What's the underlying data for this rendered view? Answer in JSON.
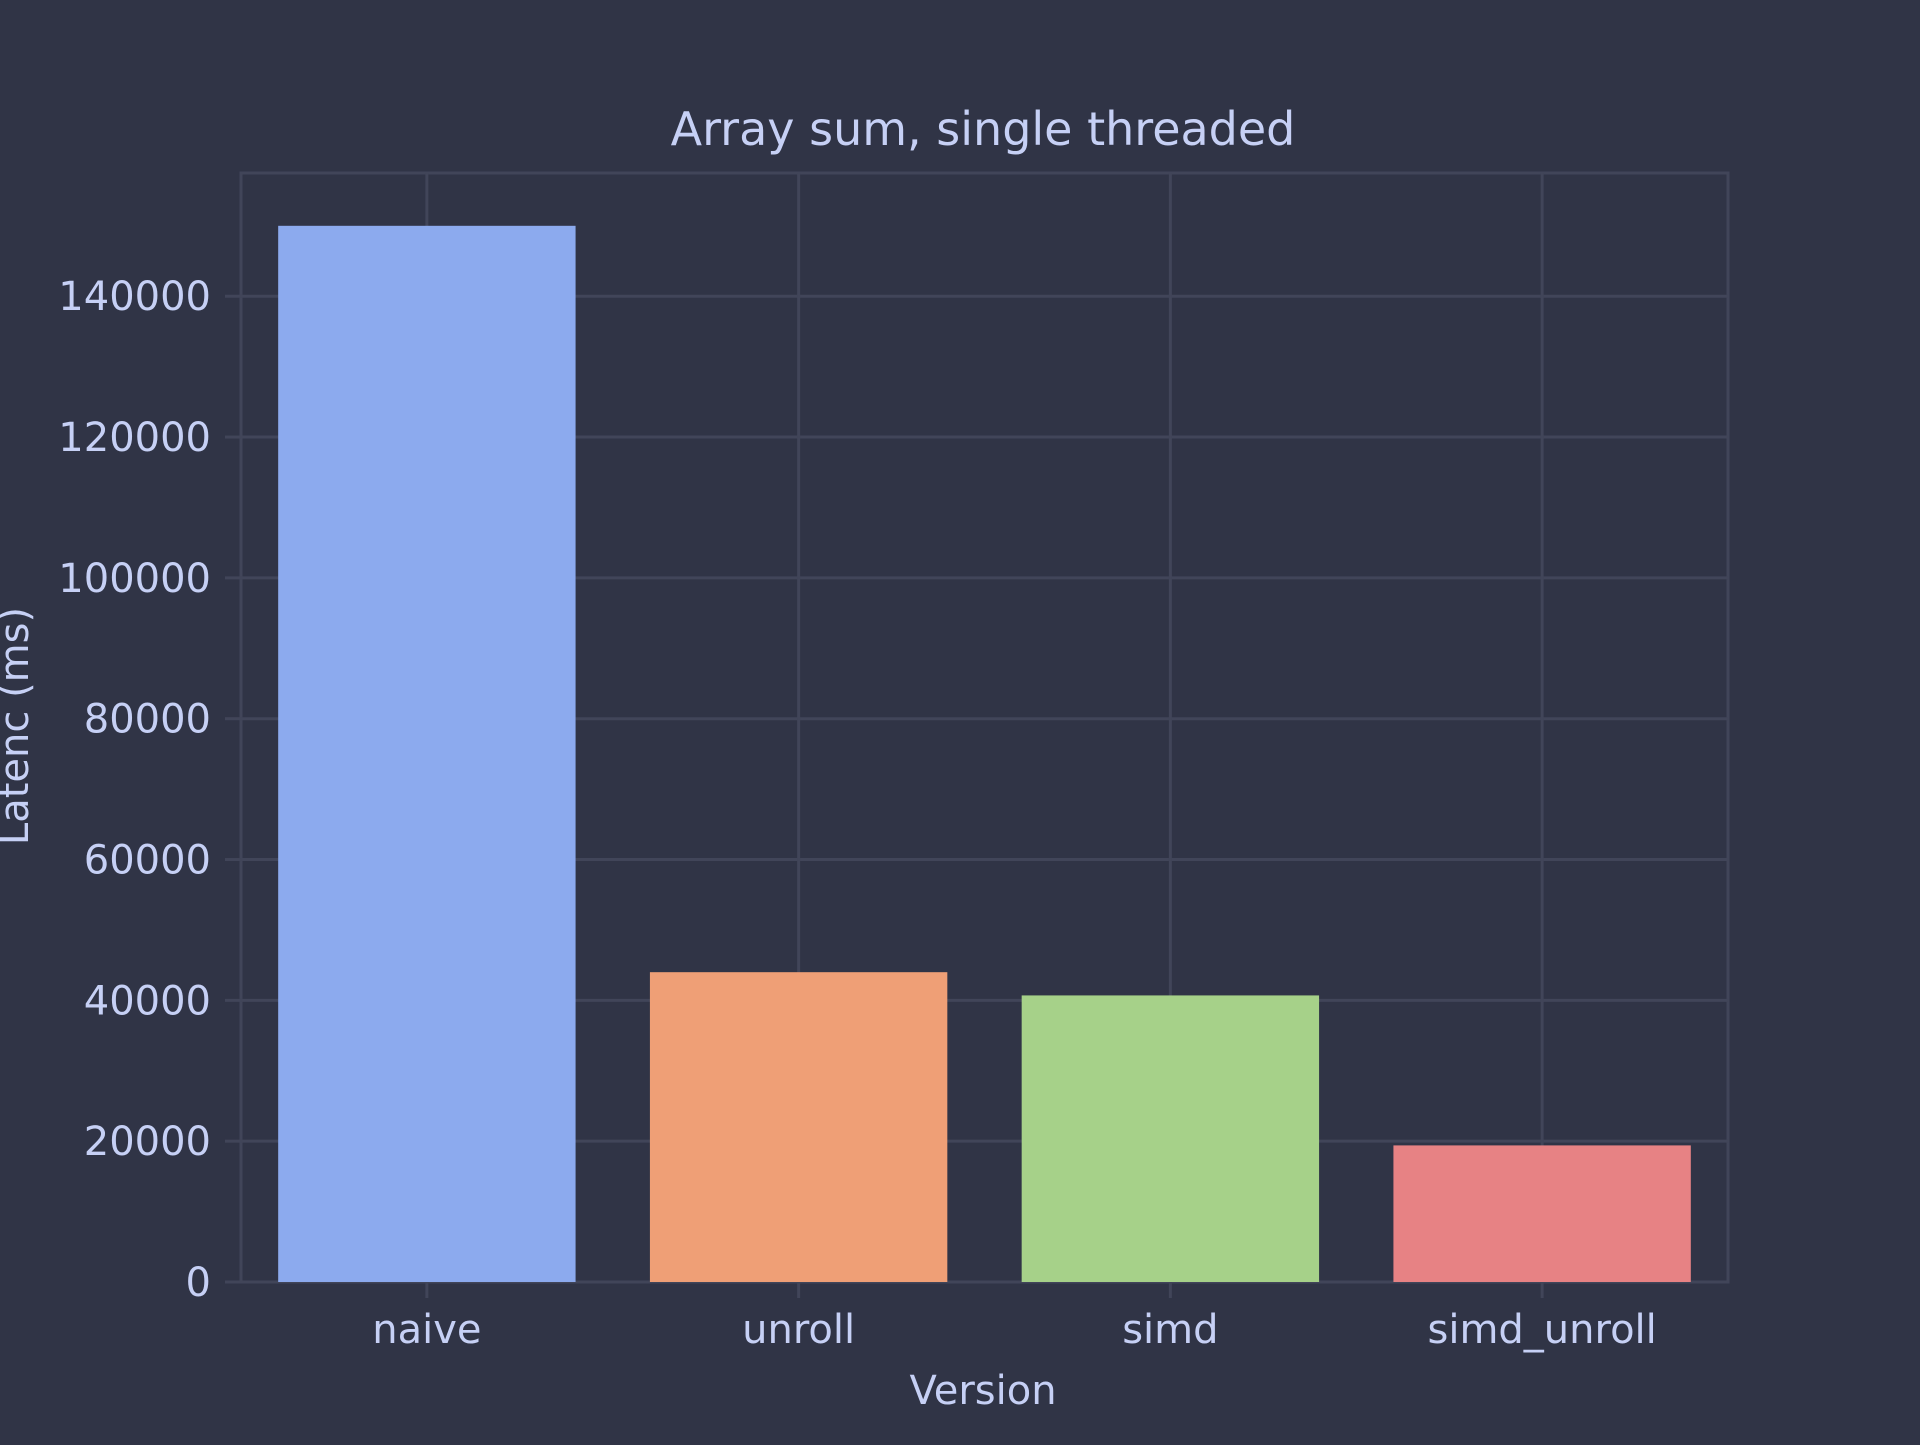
{
  "chart_data": {
    "type": "bar",
    "title": "Array sum, single threaded",
    "xlabel": "Version",
    "ylabel": "Latenc (ms)",
    "categories": [
      "naive",
      "unroll",
      "simd",
      "simd_unroll"
    ],
    "values": [
      150000,
      44000,
      40700,
      19400
    ],
    "bar_colors": [
      "#8caaee",
      "#ef9f76",
      "#a6d189",
      "#e78284"
    ],
    "ylim": [
      0,
      157500
    ],
    "yticks": [
      0,
      20000,
      40000,
      60000,
      80000,
      100000,
      120000,
      140000
    ],
    "grid": true,
    "legend": "none",
    "colors": {
      "background": "#303446",
      "grid": "#414559",
      "text": "#c6d0f5"
    }
  }
}
